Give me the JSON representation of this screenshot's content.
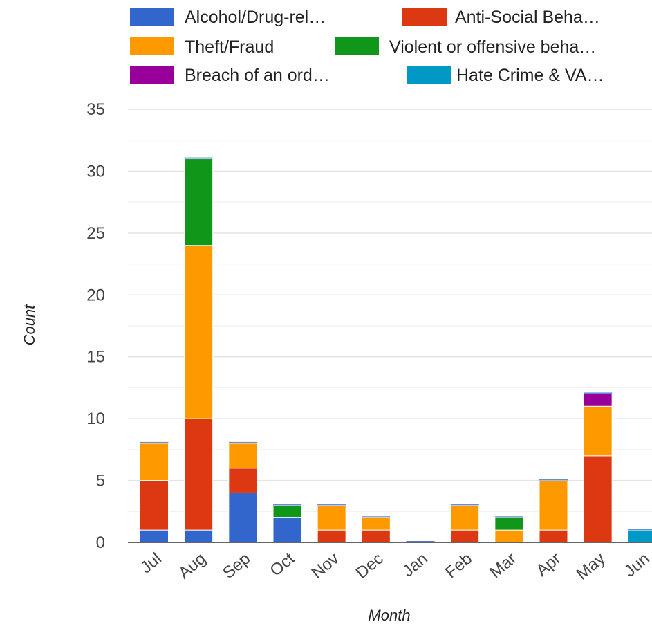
{
  "chart_data": {
    "type": "bar",
    "stacked": true,
    "title": "",
    "xlabel": "Month",
    "ylabel": "Count",
    "ylim": [
      0,
      35
    ],
    "yticks": [
      0,
      5,
      10,
      15,
      20,
      25,
      30,
      35
    ],
    "grid": true,
    "legend_position": "top",
    "categories": [
      "Jul",
      "Aug",
      "Sep",
      "Oct",
      "Nov",
      "Dec",
      "Jan",
      "Feb",
      "Mar",
      "Apr",
      "May",
      "Jun"
    ],
    "series": [
      {
        "name": "Alcohol/Drug-rel…",
        "color": "#3366cc",
        "values": [
          1,
          1,
          4,
          2,
          0,
          0,
          0,
          0,
          0,
          0,
          0,
          0
        ]
      },
      {
        "name": "Anti-Social Beha…",
        "color": "#dc3912",
        "values": [
          4,
          9,
          2,
          0,
          1,
          1,
          0,
          1,
          0,
          1,
          7,
          0
        ]
      },
      {
        "name": "Theft/Fraud",
        "color": "#ff9900",
        "values": [
          3,
          14,
          2,
          0,
          2,
          1,
          0,
          2,
          1,
          4,
          4,
          0
        ]
      },
      {
        "name": "Violent or offensive beha…",
        "color": "#109618",
        "values": [
          0,
          7,
          0,
          1,
          0,
          0,
          0,
          0,
          1,
          0,
          0,
          0
        ]
      },
      {
        "name": "Breach of an ord…",
        "color": "#990099",
        "values": [
          0,
          0,
          0,
          0,
          0,
          0,
          0,
          0,
          0,
          0,
          1,
          0
        ]
      },
      {
        "name": "Hate Crime & VA…",
        "color": "#0099c6",
        "values": [
          0,
          0,
          0,
          0,
          0,
          0,
          0,
          0,
          0,
          0,
          0,
          1
        ]
      }
    ]
  }
}
